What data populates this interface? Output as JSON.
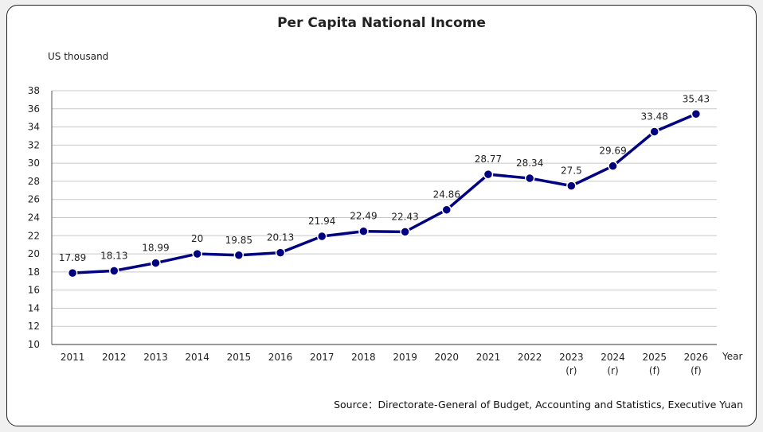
{
  "chart_data": {
    "type": "line",
    "title": "Per Capita National Income",
    "ylabel": "US thousand",
    "xlabel": "Year",
    "categories": [
      "2011",
      "2012",
      "2013",
      "2014",
      "2015",
      "2016",
      "2017",
      "2018",
      "2019",
      "2020",
      "2021",
      "2022",
      "2023\n(r)",
      "2024\n(r)",
      "2025\n(f)",
      "2026\n(f)"
    ],
    "values": [
      17.89,
      18.13,
      18.99,
      20,
      19.85,
      20.13,
      21.94,
      22.49,
      22.43,
      24.86,
      28.77,
      28.34,
      27.5,
      29.69,
      33.48,
      35.43
    ],
    "ylim": [
      10,
      38
    ],
    "yticks": [
      10,
      12,
      14,
      16,
      18,
      20,
      22,
      24,
      26,
      28,
      30,
      32,
      34,
      36,
      38
    ],
    "grid": true,
    "line_color": "#000080",
    "source": "Source：Directorate-General of Budget, Accounting and Statistics, Executive Yuan"
  }
}
